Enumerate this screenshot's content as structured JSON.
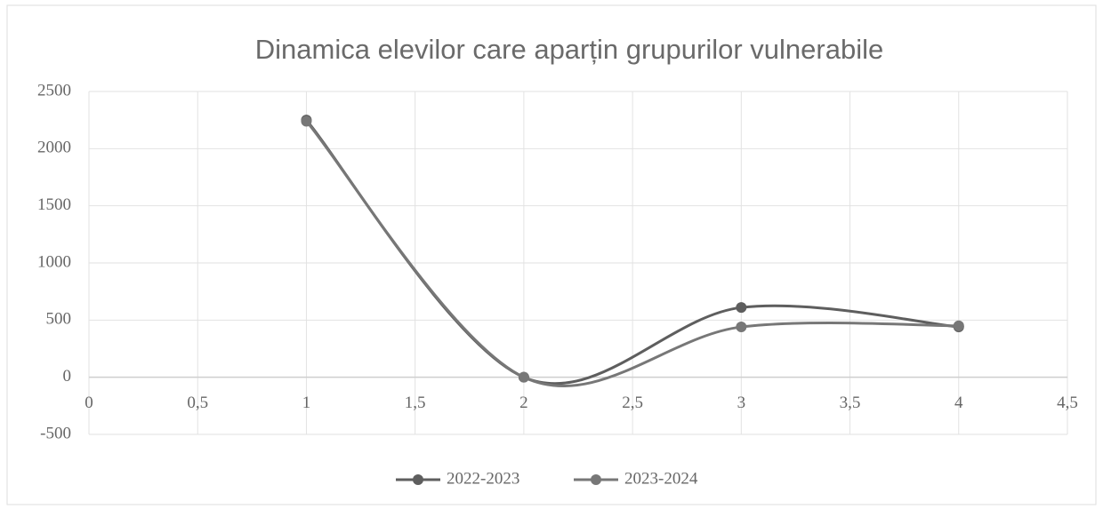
{
  "chart_data": {
    "type": "scatter",
    "title": "Dinamica elevilor care aparțin grupurilor vulnerabile",
    "x": [
      1,
      2,
      3,
      4
    ],
    "series": [
      {
        "name": "2022-2023",
        "color": "#5e5e5e",
        "values": [
          2250,
          0,
          610,
          440
        ]
      },
      {
        "name": "2023-2024",
        "color": "#777777",
        "values": [
          2240,
          0,
          440,
          450
        ]
      }
    ],
    "xlim": [
      0,
      4.5
    ],
    "xticks": [
      0,
      {
        "value": 0.5,
        "label": "0,5"
      },
      1,
      {
        "value": 1.5,
        "label": "1,5"
      },
      2,
      {
        "value": 2.5,
        "label": "2,5"
      },
      3,
      {
        "value": 3.5,
        "label": "3,5"
      },
      4,
      {
        "value": 4.5,
        "label": "4,5"
      }
    ],
    "ylim": [
      -500,
      2500
    ],
    "yticks": [
      -500,
      0,
      500,
      1000,
      1500,
      2000,
      2500
    ],
    "grid": true,
    "smooth": true,
    "legend": "bottom"
  }
}
